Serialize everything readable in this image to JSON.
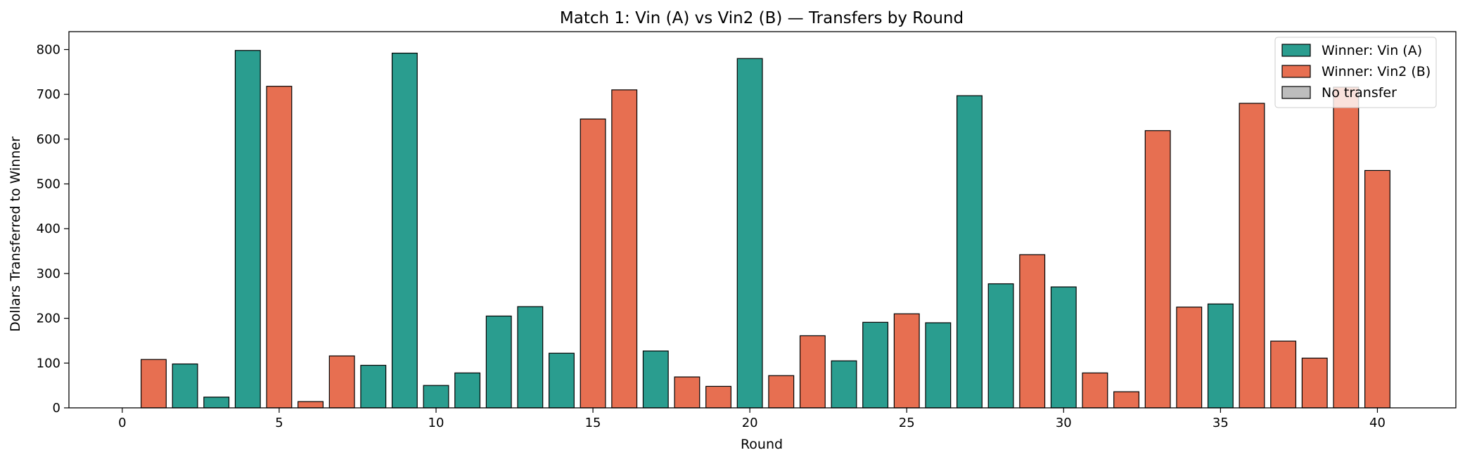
{
  "chart_data": {
    "type": "bar",
    "title": "Match 1: Vin (A) vs Vin2 (B) — Transfers by Round",
    "xlabel": "Round",
    "ylabel": "Dollars Transferred to Winner",
    "xlim": [
      -1.7,
      42.5
    ],
    "ylim": [
      0,
      840
    ],
    "x_ticks": [
      0,
      5,
      10,
      15,
      20,
      25,
      30,
      35,
      40
    ],
    "y_ticks": [
      0,
      100,
      200,
      300,
      400,
      500,
      600,
      700,
      800
    ],
    "legend_position": "top-right",
    "grid": false,
    "colors": {
      "A": "#2a9d8f",
      "B": "#e76f51",
      "none": "#bdbdbd",
      "edge": "#000000"
    },
    "legend": [
      {
        "key": "A",
        "label": "Winner: Vin (A)"
      },
      {
        "key": "B",
        "label": "Winner: Vin2 (B)"
      },
      {
        "key": "none",
        "label": "No transfer"
      }
    ],
    "rounds": [
      {
        "x": 1,
        "value": 108,
        "winner": "B"
      },
      {
        "x": 2,
        "value": 98,
        "winner": "A"
      },
      {
        "x": 3,
        "value": 24,
        "winner": "A"
      },
      {
        "x": 4,
        "value": 798,
        "winner": "A"
      },
      {
        "x": 5,
        "value": 718,
        "winner": "B"
      },
      {
        "x": 6,
        "value": 14,
        "winner": "B"
      },
      {
        "x": 7,
        "value": 116,
        "winner": "B"
      },
      {
        "x": 8,
        "value": 95,
        "winner": "A"
      },
      {
        "x": 9,
        "value": 792,
        "winner": "A"
      },
      {
        "x": 10,
        "value": 50,
        "winner": "A"
      },
      {
        "x": 11,
        "value": 78,
        "winner": "A"
      },
      {
        "x": 12,
        "value": 205,
        "winner": "A"
      },
      {
        "x": 13,
        "value": 226,
        "winner": "A"
      },
      {
        "x": 14,
        "value": 122,
        "winner": "A"
      },
      {
        "x": 15,
        "value": 645,
        "winner": "B"
      },
      {
        "x": 16,
        "value": 710,
        "winner": "B"
      },
      {
        "x": 17,
        "value": 127,
        "winner": "A"
      },
      {
        "x": 18,
        "value": 69,
        "winner": "B"
      },
      {
        "x": 19,
        "value": 48,
        "winner": "B"
      },
      {
        "x": 20,
        "value": 780,
        "winner": "A"
      },
      {
        "x": 21,
        "value": 72,
        "winner": "B"
      },
      {
        "x": 22,
        "value": 161,
        "winner": "B"
      },
      {
        "x": 23,
        "value": 105,
        "winner": "A"
      },
      {
        "x": 24,
        "value": 191,
        "winner": "A"
      },
      {
        "x": 25,
        "value": 210,
        "winner": "B"
      },
      {
        "x": 26,
        "value": 190,
        "winner": "A"
      },
      {
        "x": 27,
        "value": 697,
        "winner": "A"
      },
      {
        "x": 28,
        "value": 277,
        "winner": "A"
      },
      {
        "x": 29,
        "value": 342,
        "winner": "B"
      },
      {
        "x": 30,
        "value": 270,
        "winner": "A"
      },
      {
        "x": 31,
        "value": 78,
        "winner": "B"
      },
      {
        "x": 32,
        "value": 36,
        "winner": "B"
      },
      {
        "x": 33,
        "value": 619,
        "winner": "B"
      },
      {
        "x": 34,
        "value": 225,
        "winner": "B"
      },
      {
        "x": 35,
        "value": 232,
        "winner": "A"
      },
      {
        "x": 36,
        "value": 680,
        "winner": "B"
      },
      {
        "x": 37,
        "value": 149,
        "winner": "B"
      },
      {
        "x": 38,
        "value": 111,
        "winner": "B"
      },
      {
        "x": 39,
        "value": 716,
        "winner": "B"
      },
      {
        "x": 40,
        "value": 530,
        "winner": "B"
      }
    ]
  }
}
